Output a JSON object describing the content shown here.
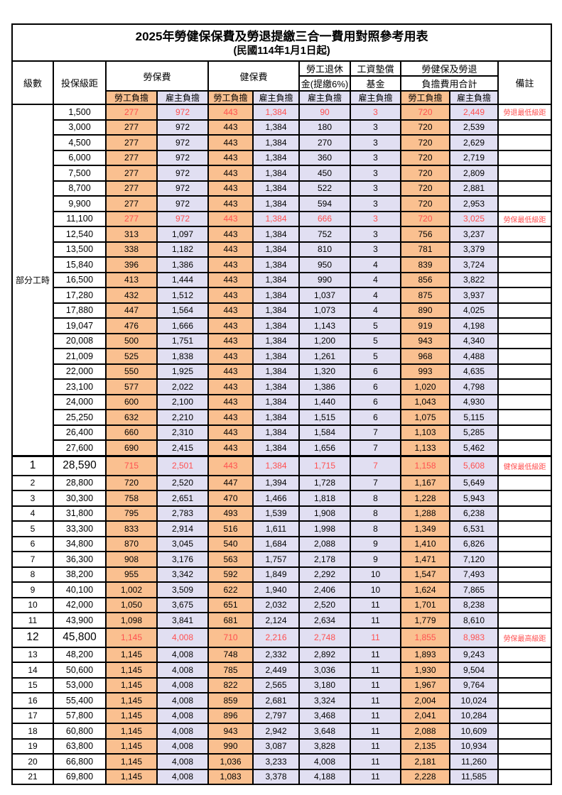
{
  "title": "2025年勞健保保費及勞退提繳三合一費用對照參考用表",
  "subtitle": "(民國114年1月1日起)",
  "colors": {
    "employee_fill": "#FAC090",
    "employer_fill": "#E1DFF2",
    "highlight_red": "#FF5050"
  },
  "header": {
    "level": "級數",
    "bracket": "投保級距",
    "labor_insurance": "勞保費",
    "health_insurance": "健保費",
    "pension_line1": "勞工退休",
    "pension_line2": "金(提繳6%)",
    "fund_line1": "工資墊償",
    "fund_line2": "基金",
    "total_line1": "勞健保及勞退",
    "total_line2": "負擔費用合計",
    "remark": "備註",
    "employee": "勞工負擔",
    "employer": "雇主負擔"
  },
  "rows": [
    {
      "level": "部分工時",
      "levelSpan": 23,
      "bracket": "1,500",
      "cells": [
        "277",
        "972",
        "443",
        "1,384",
        "90",
        "3",
        "720",
        "2,449"
      ],
      "remark": "勞退最低級距",
      "red": true
    },
    {
      "bracket": "3,000",
      "cells": [
        "277",
        "972",
        "443",
        "1,384",
        "180",
        "3",
        "720",
        "2,539"
      ],
      "remark": ""
    },
    {
      "bracket": "4,500",
      "cells": [
        "277",
        "972",
        "443",
        "1,384",
        "270",
        "3",
        "720",
        "2,629"
      ],
      "remark": ""
    },
    {
      "bracket": "6,000",
      "cells": [
        "277",
        "972",
        "443",
        "1,384",
        "360",
        "3",
        "720",
        "2,719"
      ],
      "remark": ""
    },
    {
      "bracket": "7,500",
      "cells": [
        "277",
        "972",
        "443",
        "1,384",
        "450",
        "3",
        "720",
        "2,809"
      ],
      "remark": ""
    },
    {
      "bracket": "8,700",
      "cells": [
        "277",
        "972",
        "443",
        "1,384",
        "522",
        "3",
        "720",
        "2,881"
      ],
      "remark": ""
    },
    {
      "bracket": "9,900",
      "cells": [
        "277",
        "972",
        "443",
        "1,384",
        "594",
        "3",
        "720",
        "2,953"
      ],
      "remark": ""
    },
    {
      "bracket": "11,100",
      "cells": [
        "277",
        "972",
        "443",
        "1,384",
        "666",
        "3",
        "720",
        "3,025"
      ],
      "remark": "勞保最低級距",
      "red": true
    },
    {
      "bracket": "12,540",
      "cells": [
        "313",
        "1,097",
        "443",
        "1,384",
        "752",
        "3",
        "756",
        "3,237"
      ],
      "remark": ""
    },
    {
      "bracket": "13,500",
      "cells": [
        "338",
        "1,182",
        "443",
        "1,384",
        "810",
        "3",
        "781",
        "3,379"
      ],
      "remark": ""
    },
    {
      "bracket": "15,840",
      "cells": [
        "396",
        "1,386",
        "443",
        "1,384",
        "950",
        "4",
        "839",
        "3,724"
      ],
      "remark": ""
    },
    {
      "bracket": "16,500",
      "cells": [
        "413",
        "1,444",
        "443",
        "1,384",
        "990",
        "4",
        "856",
        "3,822"
      ],
      "remark": ""
    },
    {
      "bracket": "17,280",
      "cells": [
        "432",
        "1,512",
        "443",
        "1,384",
        "1,037",
        "4",
        "875",
        "3,937"
      ],
      "remark": ""
    },
    {
      "bracket": "17,880",
      "cells": [
        "447",
        "1,564",
        "443",
        "1,384",
        "1,073",
        "4",
        "890",
        "4,025"
      ],
      "remark": ""
    },
    {
      "bracket": "19,047",
      "cells": [
        "476",
        "1,666",
        "443",
        "1,384",
        "1,143",
        "5",
        "919",
        "4,198"
      ],
      "remark": ""
    },
    {
      "bracket": "20,008",
      "cells": [
        "500",
        "1,751",
        "443",
        "1,384",
        "1,200",
        "5",
        "943",
        "4,340"
      ],
      "remark": ""
    },
    {
      "bracket": "21,009",
      "cells": [
        "525",
        "1,838",
        "443",
        "1,384",
        "1,261",
        "5",
        "968",
        "4,488"
      ],
      "remark": ""
    },
    {
      "bracket": "22,000",
      "cells": [
        "550",
        "1,925",
        "443",
        "1,384",
        "1,320",
        "6",
        "993",
        "4,635"
      ],
      "remark": ""
    },
    {
      "bracket": "23,100",
      "cells": [
        "577",
        "2,022",
        "443",
        "1,384",
        "1,386",
        "6",
        "1,020",
        "4,798"
      ],
      "remark": ""
    },
    {
      "bracket": "24,000",
      "cells": [
        "600",
        "2,100",
        "443",
        "1,384",
        "1,440",
        "6",
        "1,043",
        "4,930"
      ],
      "remark": ""
    },
    {
      "bracket": "25,250",
      "cells": [
        "632",
        "2,210",
        "443",
        "1,384",
        "1,515",
        "6",
        "1,075",
        "5,115"
      ],
      "remark": ""
    },
    {
      "bracket": "26,400",
      "cells": [
        "660",
        "2,310",
        "443",
        "1,384",
        "1,584",
        "7",
        "1,103",
        "5,285"
      ],
      "remark": ""
    },
    {
      "bracket": "27,600",
      "cells": [
        "690",
        "2,415",
        "443",
        "1,384",
        "1,656",
        "7",
        "1,133",
        "5,462"
      ],
      "remark": ""
    },
    {
      "level": "1",
      "bracket": "28,590",
      "cells": [
        "715",
        "2,501",
        "443",
        "1,384",
        "1,715",
        "7",
        "1,158",
        "5,608"
      ],
      "remark": "健保最低級距",
      "red": true,
      "big": true,
      "thickTop": true
    },
    {
      "level": "2",
      "bracket": "28,800",
      "cells": [
        "720",
        "2,520",
        "447",
        "1,394",
        "1,728",
        "7",
        "1,167",
        "5,649"
      ],
      "remark": ""
    },
    {
      "level": "3",
      "bracket": "30,300",
      "cells": [
        "758",
        "2,651",
        "470",
        "1,466",
        "1,818",
        "8",
        "1,228",
        "5,943"
      ],
      "remark": ""
    },
    {
      "level": "4",
      "bracket": "31,800",
      "cells": [
        "795",
        "2,783",
        "493",
        "1,539",
        "1,908",
        "8",
        "1,288",
        "6,238"
      ],
      "remark": ""
    },
    {
      "level": "5",
      "bracket": "33,300",
      "cells": [
        "833",
        "2,914",
        "516",
        "1,611",
        "1,998",
        "8",
        "1,349",
        "6,531"
      ],
      "remark": ""
    },
    {
      "level": "6",
      "bracket": "34,800",
      "cells": [
        "870",
        "3,045",
        "540",
        "1,684",
        "2,088",
        "9",
        "1,410",
        "6,826"
      ],
      "remark": ""
    },
    {
      "level": "7",
      "bracket": "36,300",
      "cells": [
        "908",
        "3,176",
        "563",
        "1,757",
        "2,178",
        "9",
        "1,471",
        "7,120"
      ],
      "remark": ""
    },
    {
      "level": "8",
      "bracket": "38,200",
      "cells": [
        "955",
        "3,342",
        "592",
        "1,849",
        "2,292",
        "10",
        "1,547",
        "7,493"
      ],
      "remark": ""
    },
    {
      "level": "9",
      "bracket": "40,100",
      "cells": [
        "1,002",
        "3,509",
        "622",
        "1,940",
        "2,406",
        "10",
        "1,624",
        "7,865"
      ],
      "remark": ""
    },
    {
      "level": "10",
      "bracket": "42,000",
      "cells": [
        "1,050",
        "3,675",
        "651",
        "2,032",
        "2,520",
        "11",
        "1,701",
        "8,238"
      ],
      "remark": ""
    },
    {
      "level": "11",
      "bracket": "43,900",
      "cells": [
        "1,098",
        "3,841",
        "681",
        "2,124",
        "2,634",
        "11",
        "1,779",
        "8,610"
      ],
      "remark": ""
    },
    {
      "level": "12",
      "bracket": "45,800",
      "cells": [
        "1,145",
        "4,008",
        "710",
        "2,216",
        "2,748",
        "11",
        "1,855",
        "8,983"
      ],
      "remark": "勞保最高級距",
      "red": true,
      "big": true
    },
    {
      "level": "13",
      "bracket": "48,200",
      "cells": [
        "1,145",
        "4,008",
        "748",
        "2,332",
        "2,892",
        "11",
        "1,893",
        "9,243"
      ],
      "remark": ""
    },
    {
      "level": "14",
      "bracket": "50,600",
      "cells": [
        "1,145",
        "4,008",
        "785",
        "2,449",
        "3,036",
        "11",
        "1,930",
        "9,504"
      ],
      "remark": ""
    },
    {
      "level": "15",
      "bracket": "53,000",
      "cells": [
        "1,145",
        "4,008",
        "822",
        "2,565",
        "3,180",
        "11",
        "1,967",
        "9,764"
      ],
      "remark": ""
    },
    {
      "level": "16",
      "bracket": "55,400",
      "cells": [
        "1,145",
        "4,008",
        "859",
        "2,681",
        "3,324",
        "11",
        "2,004",
        "10,024"
      ],
      "remark": ""
    },
    {
      "level": "17",
      "bracket": "57,800",
      "cells": [
        "1,145",
        "4,008",
        "896",
        "2,797",
        "3,468",
        "11",
        "2,041",
        "10,284"
      ],
      "remark": ""
    },
    {
      "level": "18",
      "bracket": "60,800",
      "cells": [
        "1,145",
        "4,008",
        "943",
        "2,942",
        "3,648",
        "11",
        "2,088",
        "10,609"
      ],
      "remark": ""
    },
    {
      "level": "19",
      "bracket": "63,800",
      "cells": [
        "1,145",
        "4,008",
        "990",
        "3,087",
        "3,828",
        "11",
        "2,135",
        "10,934"
      ],
      "remark": ""
    },
    {
      "level": "20",
      "bracket": "66,800",
      "cells": [
        "1,145",
        "4,008",
        "1,036",
        "3,233",
        "4,008",
        "11",
        "2,181",
        "11,260"
      ],
      "remark": ""
    },
    {
      "level": "21",
      "bracket": "69,800",
      "cells": [
        "1,145",
        "4,008",
        "1,083",
        "3,378",
        "4,188",
        "11",
        "2,228",
        "11,585"
      ],
      "remark": ""
    }
  ]
}
